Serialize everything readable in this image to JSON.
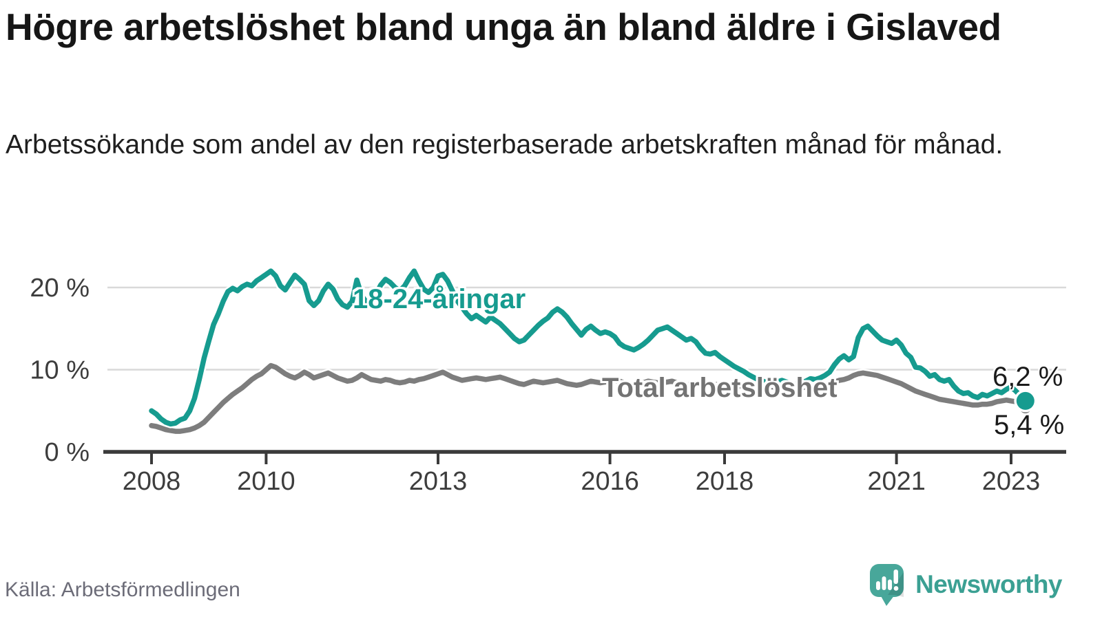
{
  "header": {
    "title": "Högre arbetslöshet bland unga än bland äldre i Gislaved",
    "subtitle": "Arbetssökande som andel av den registerbaserade arbetskraften månad för månad."
  },
  "footer": {
    "source": "Källa: Arbetsförmedlingen",
    "logo_text": "Newsworthy"
  },
  "colors": {
    "youth": "#169b8f",
    "total": "#7d7d7d",
    "total_label": "#737373",
    "axis": "#3a3a3a",
    "tick_text": "#3d3d3d",
    "grid": "#d9d9d9",
    "value_text": "#1a1a1a",
    "logo_bubble": "#48a79a",
    "logo_text": "#3ba093",
    "background": "#ffffff"
  },
  "chart_data": {
    "type": "line",
    "title": "Högre arbetslöshet bland unga än bland äldre i Gislaved",
    "subtitle": "Arbetssökande som andel av den registerbaserade arbetskraften månad för månad.",
    "source": "Källa: Arbetsförmedlingen",
    "x_unit": "month",
    "start_month": "2008-01",
    "end_month": "2023-04",
    "x_ticks": [
      2008,
      2010,
      2013,
      2016,
      2018,
      2021,
      2023
    ],
    "y_ticks": [
      {
        "value": 0,
        "label": "0 %"
      },
      {
        "value": 10,
        "label": "10 %"
      },
      {
        "value": 20,
        "label": "20 %"
      }
    ],
    "ylim": [
      0,
      23
    ],
    "grid": "horizontal",
    "legend_position": "inline-labels",
    "series": [
      {
        "name": "18-24-åringar",
        "color": "#169b8f",
        "end_label": "6,2 %",
        "last_value": 6.2,
        "values": [
          5.0,
          4.6,
          4.0,
          3.6,
          3.4,
          3.5,
          3.9,
          4.1,
          5.0,
          6.5,
          8.8,
          11.4,
          13.5,
          15.5,
          16.8,
          18.3,
          19.5,
          19.9,
          19.6,
          20.1,
          20.4,
          20.2,
          20.8,
          21.2,
          21.6,
          22.0,
          21.4,
          20.2,
          19.7,
          20.6,
          21.5,
          21.0,
          20.4,
          18.4,
          17.8,
          18.4,
          19.6,
          20.4,
          19.8,
          18.6,
          17.9,
          17.6,
          18.3,
          20.9,
          19.0,
          18.2,
          18.0,
          19.2,
          20.3,
          21.0,
          20.6,
          20.0,
          19.6,
          20.2,
          21.2,
          22.0,
          20.8,
          19.8,
          19.4,
          20.0,
          21.4,
          21.6,
          20.8,
          19.6,
          18.4,
          17.6,
          16.8,
          16.2,
          16.6,
          16.2,
          15.8,
          16.4,
          16.0,
          15.6,
          15.0,
          14.4,
          13.8,
          13.4,
          13.6,
          14.2,
          14.8,
          15.4,
          15.9,
          16.3,
          17.0,
          17.4,
          17.0,
          16.4,
          15.6,
          14.9,
          14.2,
          14.9,
          15.3,
          14.8,
          14.4,
          14.6,
          14.4,
          14.0,
          13.2,
          12.8,
          12.6,
          12.4,
          12.7,
          13.1,
          13.6,
          14.2,
          14.8,
          15.0,
          15.2,
          14.8,
          14.4,
          14.0,
          13.6,
          13.8,
          13.4,
          12.6,
          12.0,
          11.9,
          12.1,
          11.6,
          11.2,
          10.8,
          10.4,
          10.1,
          9.8,
          9.4,
          9.1,
          8.8,
          8.6,
          8.4,
          8.3,
          8.5,
          8.7,
          8.5,
          8.3,
          8.2,
          8.4,
          8.6,
          8.9,
          8.8,
          9.0,
          9.3,
          9.7,
          10.6,
          11.3,
          11.7,
          11.2,
          11.6,
          13.9,
          15.0,
          15.3,
          14.7,
          14.1,
          13.6,
          13.4,
          13.2,
          13.6,
          13.0,
          12.0,
          11.5,
          10.3,
          10.2,
          9.8,
          9.2,
          9.4,
          8.8,
          8.6,
          8.8,
          8.0,
          7.4,
          7.1,
          7.2,
          6.8,
          6.6,
          7.0,
          6.8,
          7.1,
          7.4,
          7.2,
          7.6,
          7.9,
          7.4,
          6.8,
          6.2
        ]
      },
      {
        "name": "Total arbetslöshet",
        "color": "#7d7d7d",
        "end_label": "5,4 %",
        "last_value": 5.4,
        "values": [
          3.2,
          3.1,
          2.9,
          2.7,
          2.6,
          2.5,
          2.5,
          2.6,
          2.7,
          2.9,
          3.2,
          3.6,
          4.2,
          4.8,
          5.4,
          6.0,
          6.5,
          7.0,
          7.4,
          7.8,
          8.3,
          8.8,
          9.2,
          9.5,
          10.0,
          10.5,
          10.3,
          9.9,
          9.5,
          9.2,
          9.0,
          9.3,
          9.7,
          9.4,
          9.0,
          9.2,
          9.4,
          9.6,
          9.3,
          9.0,
          8.8,
          8.6,
          8.7,
          9.0,
          9.4,
          9.1,
          8.8,
          8.7,
          8.6,
          8.8,
          8.7,
          8.5,
          8.4,
          8.5,
          8.7,
          8.6,
          8.8,
          8.9,
          9.1,
          9.3,
          9.5,
          9.7,
          9.4,
          9.1,
          8.9,
          8.7,
          8.8,
          8.9,
          9.0,
          8.9,
          8.8,
          8.9,
          9.0,
          9.1,
          8.9,
          8.7,
          8.5,
          8.3,
          8.2,
          8.4,
          8.6,
          8.5,
          8.4,
          8.5,
          8.6,
          8.7,
          8.5,
          8.3,
          8.2,
          8.1,
          8.2,
          8.4,
          8.6,
          8.5,
          8.4,
          8.5,
          8.6,
          8.7,
          8.6,
          8.4,
          8.3,
          8.2,
          8.3,
          8.4,
          8.6,
          8.5,
          8.4,
          8.4,
          8.5,
          8.6,
          8.4,
          8.3,
          8.2,
          8.1,
          8.2,
          8.3,
          8.4,
          8.3,
          8.2,
          8.2,
          8.3,
          8.3,
          8.2,
          8.0,
          7.9,
          7.8,
          7.9,
          8.0,
          8.1,
          8.0,
          7.9,
          7.9,
          8.0,
          8.0,
          7.9,
          7.8,
          7.8,
          7.9,
          8.0,
          8.1,
          8.1,
          8.2,
          8.3,
          8.5,
          8.7,
          8.8,
          9.0,
          9.3,
          9.5,
          9.6,
          9.5,
          9.4,
          9.3,
          9.1,
          8.9,
          8.7,
          8.5,
          8.3,
          8.0,
          7.7,
          7.4,
          7.2,
          7.0,
          6.8,
          6.6,
          6.4,
          6.3,
          6.2,
          6.1,
          6.0,
          5.9,
          5.8,
          5.7,
          5.7,
          5.8,
          5.8,
          5.9,
          6.1,
          6.2,
          6.3,
          6.2,
          6.1,
          5.8,
          5.4
        ]
      }
    ]
  }
}
